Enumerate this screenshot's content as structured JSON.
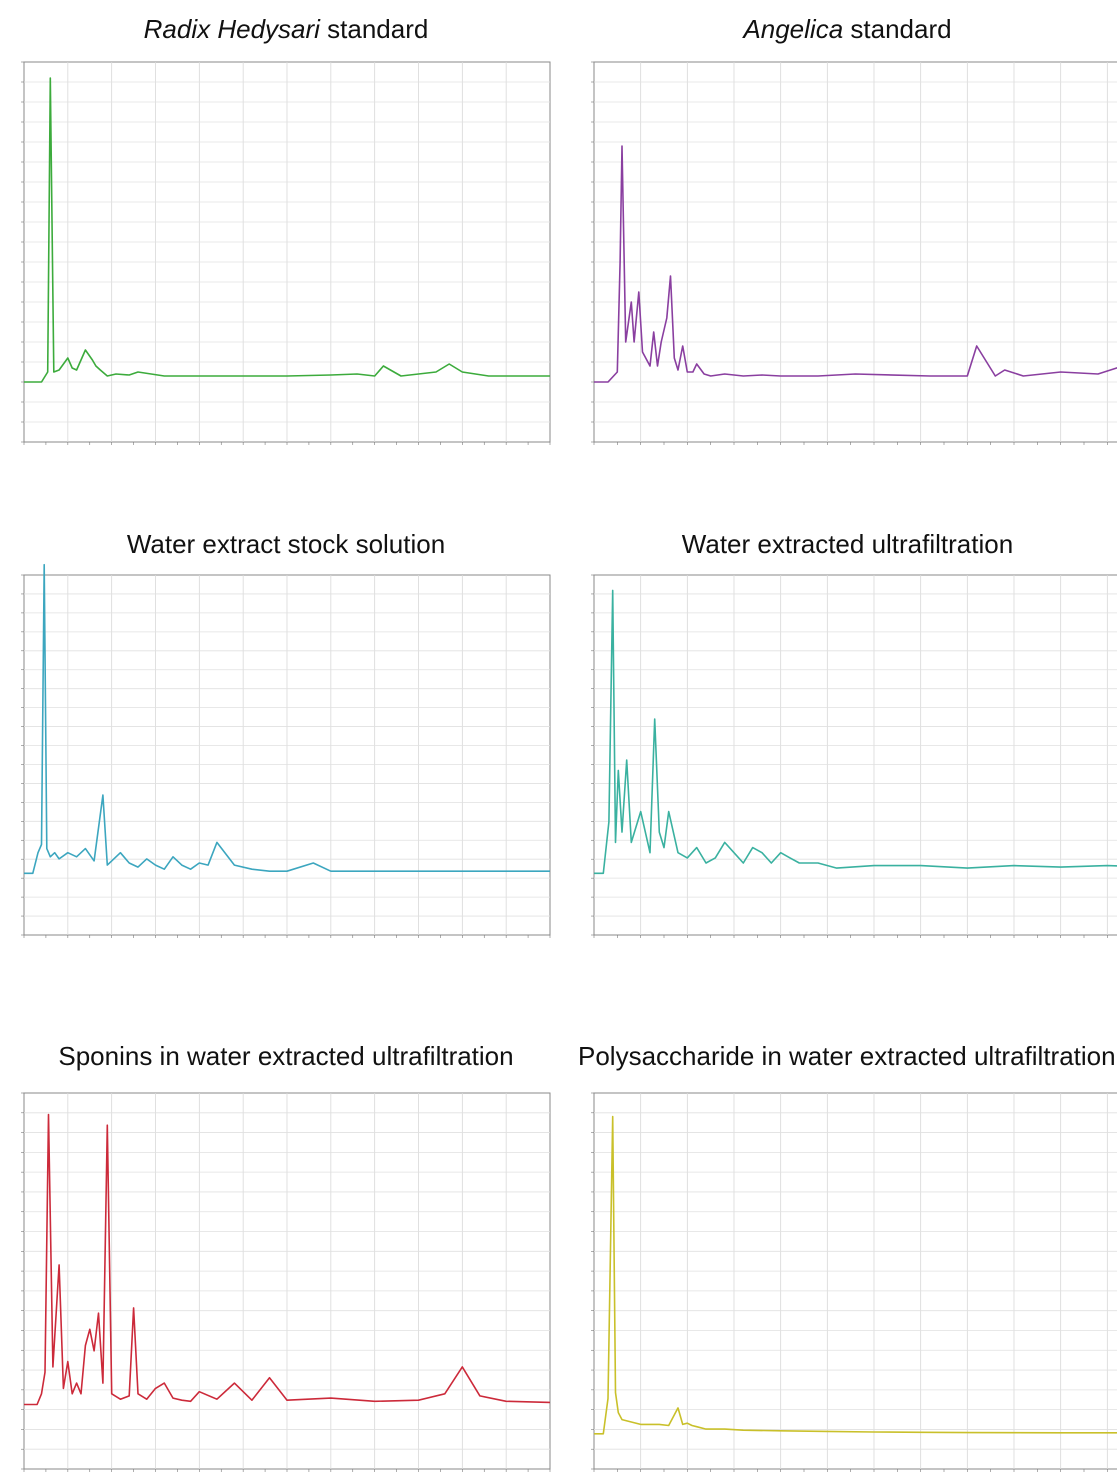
{
  "figure": {
    "panels": [
      {
        "title_italic": "Radix Hedysari",
        "title_rest": " standard"
      },
      {
        "title_italic": "Angelica",
        "title_rest": " standard"
      },
      {
        "title_italic": "",
        "title_rest": "Water extract stock solution"
      },
      {
        "title_italic": "",
        "title_rest": "Water extracted ultrafiltration"
      },
      {
        "title_italic": "",
        "title_rest": "Sponins in water extracted ultrafiltration"
      },
      {
        "title_italic": "",
        "title_rest": "Polysaccharide in water extracted ultrafiltration"
      }
    ]
  },
  "chart_data": [
    {
      "type": "line",
      "title": "Radix Hedysari standard",
      "color": "#3cab3c",
      "xlim": [
        0,
        60
      ],
      "ylim": [
        -3,
        16
      ],
      "x": [
        0,
        2,
        2.7,
        3,
        3.4,
        4,
        5,
        5.5,
        6,
        7,
        7.8,
        8.2,
        8.7,
        9.5,
        10.5,
        12,
        13,
        16,
        20,
        25,
        30,
        35,
        38,
        40,
        41,
        43,
        45,
        47,
        48.5,
        50,
        53,
        56,
        60
      ],
      "y": [
        0,
        0,
        0.5,
        15.2,
        0.5,
        0.6,
        1.2,
        0.7,
        0.6,
        1.6,
        1.1,
        0.8,
        0.6,
        0.3,
        0.4,
        0.35,
        0.5,
        0.3,
        0.3,
        0.3,
        0.3,
        0.35,
        0.4,
        0.3,
        0.8,
        0.3,
        0.4,
        0.5,
        0.9,
        0.5,
        0.3,
        0.3,
        0.3
      ]
    },
    {
      "type": "line",
      "title": "Angelica standard",
      "color": "#8a3fa0",
      "xlim": [
        0,
        60
      ],
      "ylim": [
        -3,
        16
      ],
      "x": [
        0,
        1.5,
        2.5,
        2.8,
        3,
        3.4,
        4,
        4.3,
        4.8,
        5.2,
        6,
        6.4,
        6.8,
        7.2,
        7.8,
        8.2,
        8.6,
        9,
        9.5,
        10,
        10.6,
        11,
        11.8,
        12.5,
        14,
        16,
        18,
        20,
        24,
        28,
        36,
        40,
        41,
        43,
        44,
        46,
        50,
        54,
        58,
        60
      ],
      "y": [
        0,
        0,
        0.5,
        6,
        11.8,
        2,
        4,
        2,
        4.5,
        1.5,
        0.8,
        2.5,
        0.8,
        2,
        3.2,
        5.3,
        1.2,
        0.6,
        1.8,
        0.5,
        0.5,
        0.9,
        0.4,
        0.3,
        0.4,
        0.3,
        0.35,
        0.3,
        0.3,
        0.4,
        0.3,
        0.3,
        1.8,
        0.3,
        0.6,
        0.3,
        0.5,
        0.4,
        1,
        2.4
      ]
    },
    {
      "type": "line",
      "title": "Water extract stock solution",
      "color": "#3ca6bf",
      "xlim": [
        0,
        60
      ],
      "ylim": [
        -30,
        145
      ],
      "x": [
        0,
        1,
        1.6,
        2,
        2.3,
        2.6,
        3,
        3.5,
        4,
        5,
        6,
        7,
        8,
        8.5,
        9,
        9.5,
        10,
        11,
        12,
        13,
        14,
        15,
        16,
        17,
        18,
        19,
        20,
        21,
        22,
        24,
        26,
        28,
        30,
        33,
        35,
        40,
        50,
        60
      ],
      "y": [
        0,
        0,
        10,
        14,
        150,
        12,
        8,
        10,
        7,
        10,
        8,
        12,
        6,
        22,
        38,
        4,
        6,
        10,
        5,
        3,
        7,
        4,
        2,
        8,
        4,
        2,
        5,
        4,
        15,
        4,
        2,
        1,
        1,
        5,
        1,
        1,
        1,
        1
      ]
    },
    {
      "type": "line",
      "title": "Water extracted ultrafiltration",
      "color": "#3ab1a0",
      "xlim": [
        0,
        60
      ],
      "ylim": [
        -12,
        58
      ],
      "x": [
        0,
        1,
        1.6,
        2,
        2.3,
        2.6,
        3,
        3.5,
        4,
        5,
        6,
        6.5,
        7,
        7.5,
        8,
        9,
        10,
        11,
        12,
        13,
        14,
        15,
        16,
        17,
        18,
        19,
        20,
        21,
        22,
        24,
        26,
        30,
        35,
        40,
        45,
        50,
        55,
        60
      ],
      "y": [
        0,
        0,
        10,
        55,
        6,
        20,
        8,
        22,
        6,
        12,
        4,
        30,
        8,
        5,
        12,
        4,
        3,
        5,
        2,
        3,
        6,
        4,
        2,
        5,
        4,
        2,
        4,
        3,
        2,
        2,
        1,
        1.5,
        1.5,
        1,
        1.5,
        1.2,
        1.5,
        1.2
      ]
    },
    {
      "type": "line",
      "title": "Sponins in water extracted ultrafiltration",
      "color": "#cc2a3a",
      "xlim": [
        0,
        60
      ],
      "ylim": [
        -60,
        290
      ],
      "x": [
        0,
        1.5,
        2,
        2.4,
        2.8,
        3.3,
        4,
        4.5,
        5,
        5.5,
        6,
        6.5,
        7,
        7.5,
        8,
        8.5,
        9,
        9.5,
        10,
        11,
        12,
        12.5,
        13,
        14,
        15,
        16,
        17,
        18,
        19,
        20,
        22,
        24,
        26,
        28,
        30,
        35,
        40,
        45,
        48,
        50,
        52,
        55,
        60
      ],
      "y": [
        0,
        0,
        10,
        30,
        270,
        35,
        130,
        15,
        40,
        10,
        20,
        10,
        55,
        70,
        50,
        85,
        20,
        260,
        10,
        5,
        8,
        90,
        10,
        5,
        15,
        20,
        6,
        4,
        3,
        12,
        5,
        20,
        4,
        25,
        4,
        6,
        3,
        4,
        10,
        35,
        8,
        3,
        2
      ]
    },
    {
      "type": "line",
      "title": "Polysaccharide in water extracted ultrafiltration",
      "color": "#c9c02a",
      "xlim": [
        0,
        60
      ],
      "ylim": [
        -3,
        29
      ],
      "x": [
        0,
        1,
        1.5,
        2,
        2.3,
        2.6,
        3,
        4,
        5,
        6,
        7,
        8,
        9,
        9.5,
        10,
        10.5,
        11,
        12,
        14,
        16,
        20,
        25,
        30,
        35,
        40,
        50,
        60
      ],
      "y": [
        0,
        0,
        3,
        27,
        3.5,
        1.8,
        1.2,
        1,
        0.8,
        0.8,
        0.8,
        0.7,
        2.2,
        0.8,
        0.9,
        0.7,
        0.6,
        0.4,
        0.4,
        0.3,
        0.25,
        0.2,
        0.15,
        0.12,
        0.1,
        0.08,
        0.08
      ]
    }
  ]
}
